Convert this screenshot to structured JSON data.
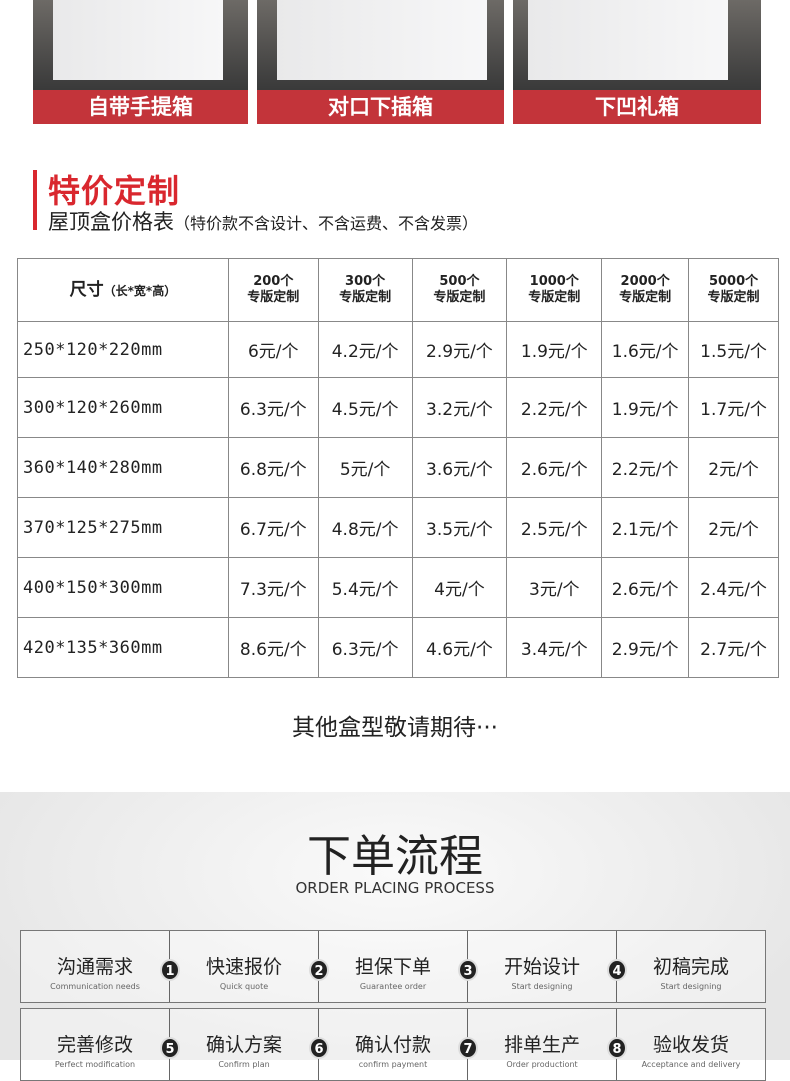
{
  "box_types": [
    "自带手提箱",
    "对口下插箱",
    "下凹礼箱"
  ],
  "section": {
    "title": "特价定制",
    "subtitle": "屋顶盒价格表",
    "note": "（特价款不含设计、不含运费、不含发票）",
    "accent": "#d9272e"
  },
  "table": {
    "size_header": "尺寸",
    "size_header_note": "（长*宽*高）",
    "columns": [
      {
        "qty": "200个",
        "label": "专版定制"
      },
      {
        "qty": "300个",
        "label": "专版定制"
      },
      {
        "qty": "500个",
        "label": "专版定制"
      },
      {
        "qty": "1000个",
        "label": "专版定制"
      },
      {
        "qty": "2000个",
        "label": "专版定制"
      },
      {
        "qty": "5000个",
        "label": "专版定制"
      }
    ],
    "rows": [
      {
        "size": "250*120*220mm",
        "prices": [
          "6元/个",
          "4.2元/个",
          "2.9元/个",
          "1.9元/个",
          "1.6元/个",
          "1.5元/个"
        ]
      },
      {
        "size": "300*120*260mm",
        "prices": [
          "6.3元/个",
          "4.5元/个",
          "3.2元/个",
          "2.2元/个",
          "1.9元/个",
          "1.7元/个"
        ]
      },
      {
        "size": "360*140*280mm",
        "prices": [
          "6.8元/个",
          "5元/个",
          "3.6元/个",
          "2.6元/个",
          "2.2元/个",
          "2元/个"
        ]
      },
      {
        "size": "370*125*275mm",
        "prices": [
          "6.7元/个",
          "4.8元/个",
          "3.5元/个",
          "2.5元/个",
          "2.1元/个",
          "2元/个"
        ]
      },
      {
        "size": "400*150*300mm",
        "prices": [
          "7.3元/个",
          "5.4元/个",
          "4元/个",
          "3元/个",
          "2.6元/个",
          "2.4元/个"
        ]
      },
      {
        "size": "420*135*360mm",
        "prices": [
          "8.6元/个",
          "6.3元/个",
          "4.6元/个",
          "3.4元/个",
          "2.9元/个",
          "2.7元/个"
        ]
      }
    ]
  },
  "more_text": "其他盒型敬请期待···",
  "flow": {
    "title": "下单流程",
    "subtitle": "ORDER PLACING PROCESS",
    "steps": [
      {
        "cn": "沟通需求",
        "en": "Communication needs",
        "num": "1"
      },
      {
        "cn": "快速报价",
        "en": "Quick quote",
        "num": "2"
      },
      {
        "cn": "担保下单",
        "en": "Guarantee order",
        "num": "3"
      },
      {
        "cn": "开始设计",
        "en": "Start designing",
        "num": "4"
      },
      {
        "cn": "初稿完成",
        "en": "Start designing",
        "num": ""
      },
      {
        "cn": "完善修改",
        "en": "Perfect modification",
        "num": "5"
      },
      {
        "cn": "确认方案",
        "en": "Confirm plan",
        "num": "6"
      },
      {
        "cn": "确认付款",
        "en": "confirm payment",
        "num": "7"
      },
      {
        "cn": "排单生产",
        "en": "Order productiont",
        "num": "8"
      },
      {
        "cn": "验收发货",
        "en": "Acceptance and delivery",
        "num": ""
      }
    ]
  }
}
